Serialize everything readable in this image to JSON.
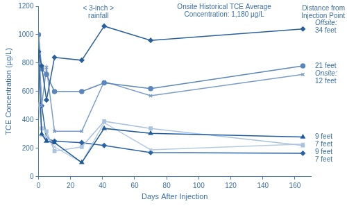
{
  "chart_data": {
    "type": "line",
    "x_label": "Days After Injection",
    "y_label": "TCE Concentration (µg/L)",
    "annotations": {
      "rainfall_note": [
        "< 3-inch >",
        "rainfall"
      ],
      "onsite_note": [
        "Onsite Historical TCE Average",
        "Concentration: 1,180 µg/L"
      ],
      "distance_note": [
        "Distance from",
        "Injection Point"
      ]
    },
    "x": [
      0,
      2,
      5,
      10,
      27,
      41,
      70,
      165
    ],
    "series": [
      {
        "name": "34 feet",
        "group": "Offsite:",
        "color": "#2a5f9e",
        "marker": "diamond",
        "values": [
          880,
          780,
          540,
          840,
          820,
          1060,
          960,
          1040
        ]
      },
      {
        "name": "21 feet",
        "color": "#5b86bb",
        "marker": "circle",
        "values": [
          1000,
          760,
          720,
          600,
          600,
          660,
          620,
          780
        ]
      },
      {
        "name": "12 feet",
        "group": "Onsite:",
        "color": "#7b9cc8",
        "marker": "x",
        "values": [
          1000,
          500,
          770,
          320,
          320,
          670,
          570,
          720
        ]
      },
      {
        "name": "9 feet",
        "color": "#1f5a9a",
        "marker": "triangle",
        "values": [
          850,
          300,
          250,
          240,
          100,
          340,
          305,
          280
        ]
      },
      {
        "name": "9 feet",
        "color": "#a9c2e0",
        "marker": "square",
        "values": [
          510,
          340,
          320,
          180,
          210,
          390,
          340,
          220
        ]
      },
      {
        "name": "7 feet",
        "color": "#b5cbe5",
        "marker": "x",
        "values": [
          800,
          290,
          280,
          210,
          100,
          380,
          190,
          230
        ]
      },
      {
        "name": "7 feet",
        "color": "#2a62a3",
        "marker": "diamond",
        "values": [
          880,
          500,
          270,
          250,
          240,
          220,
          170,
          165
        ]
      }
    ],
    "xlim": [
      0,
      170
    ],
    "xticks": [
      0,
      20,
      40,
      60,
      80,
      100,
      120,
      140,
      160
    ],
    "ylim": [
      0,
      1200
    ],
    "yticks": [
      0,
      200,
      400,
      600,
      800,
      1000,
      1200
    ],
    "grid": false,
    "legend": false
  }
}
